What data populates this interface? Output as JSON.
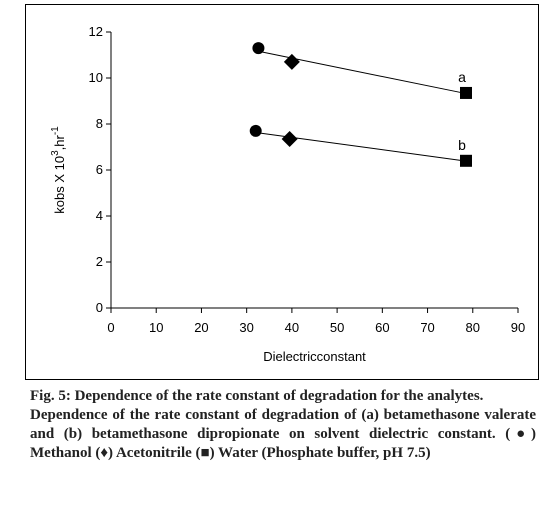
{
  "chart_data": {
    "type": "scatter",
    "xlabel": "Dielectricconstant",
    "ylabel_base": "kobs X 10",
    "ylabel_exp": "3",
    "ylabel_unit": ",hr",
    "ylabel_unit_exp": "-1",
    "xlim": [
      0,
      90
    ],
    "ylim": [
      0,
      12
    ],
    "x_ticks": [
      0,
      10,
      20,
      30,
      40,
      50,
      60,
      70,
      80,
      90
    ],
    "y_ticks": [
      0,
      2,
      4,
      6,
      8,
      10,
      12
    ],
    "grid": false,
    "series": [
      {
        "label": "a",
        "trendline": true,
        "points": [
          {
            "x": 32.6,
            "y": 11.3,
            "marker": "circle"
          },
          {
            "x": 40.0,
            "y": 10.7,
            "marker": "diamond"
          },
          {
            "x": 78.5,
            "y": 9.35,
            "marker": "square"
          }
        ]
      },
      {
        "label": "b",
        "trendline": true,
        "points": [
          {
            "x": 32.0,
            "y": 7.7,
            "marker": "circle"
          },
          {
            "x": 39.5,
            "y": 7.35,
            "marker": "diamond"
          },
          {
            "x": 78.5,
            "y": 6.4,
            "marker": "square"
          }
        ]
      }
    ]
  },
  "caption": {
    "title": "Fig. 5: Dependence of the rate constant of degradation for the analytes.",
    "body": "Dependence of the rate constant of degradation of (a) betamethasone valerate and (b) betamethasone dipropionate on solvent dielectric constant. (●) Methanol (♦) Acetonitrile (■) Water (Phosphate buffer, pH 7.5)"
  }
}
